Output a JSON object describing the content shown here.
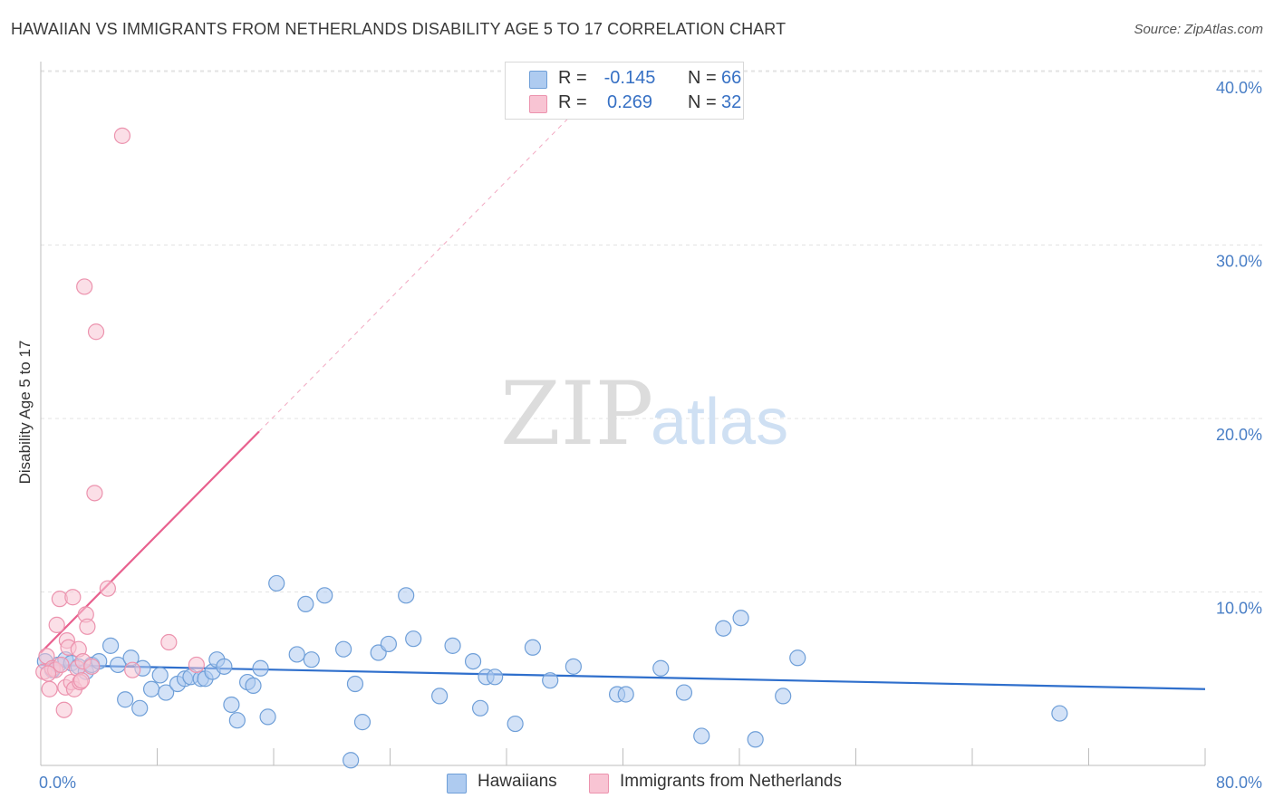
{
  "header": {
    "title": "HAWAIIAN VS IMMIGRANTS FROM NETHERLANDS DISABILITY AGE 5 TO 17 CORRELATION CHART",
    "source": "Source: ZipAtlas.com"
  },
  "watermark": {
    "zip": "ZIP",
    "atlas": "atlas"
  },
  "legend": {
    "r_label": "R =",
    "n_label": "N =",
    "hawaiians": {
      "r": "-0.145",
      "n": "66"
    },
    "netherlands": {
      "r": "0.269",
      "n": "32"
    }
  },
  "colors": {
    "blue_fill": "#aecbf0",
    "blue_stroke": "#6f9fd8",
    "blue_line": "#2f6fcc",
    "pink_fill": "#f8c4d3",
    "pink_stroke": "#ec93ae",
    "pink_line": "#e8608e",
    "tick_text": "#4a7fc6",
    "grid": "#e3e3e3"
  },
  "chart_data": {
    "type": "scatter",
    "title": "HAWAIIAN VS IMMIGRANTS FROM NETHERLANDS DISABILITY AGE 5 TO 17 CORRELATION CHART",
    "xlabel": "",
    "ylabel": "Disability Age 5 to 17",
    "xlim": [
      0,
      80
    ],
    "ylim": [
      0,
      42
    ],
    "x_tick_labels": [
      "0.0%",
      "80.0%"
    ],
    "y_ticks": [
      10,
      20,
      30,
      40
    ],
    "y_tick_labels": [
      "10.0%",
      "20.0%",
      "30.0%",
      "40.0%"
    ],
    "legend_labels": [
      "Hawaiians",
      "Immigrants from Netherlands"
    ],
    "series": [
      {
        "name": "Hawaiians",
        "trend": {
          "x": [
            0,
            80
          ],
          "y": [
            5.8,
            4.4
          ],
          "solid_to": 80
        },
        "points": [
          [
            0.3,
            6.0
          ],
          [
            0.8,
            5.5
          ],
          [
            1.2,
            5.8
          ],
          [
            1.7,
            6.1
          ],
          [
            2.1,
            5.9
          ],
          [
            2.6,
            5.7
          ],
          [
            3.1,
            5.4
          ],
          [
            3.5,
            5.8
          ],
          [
            4.0,
            6.0
          ],
          [
            4.8,
            6.9
          ],
          [
            5.3,
            5.8
          ],
          [
            5.8,
            3.8
          ],
          [
            6.2,
            6.2
          ],
          [
            6.8,
            3.3
          ],
          [
            7.0,
            5.6
          ],
          [
            7.6,
            4.4
          ],
          [
            8.2,
            5.2
          ],
          [
            8.6,
            4.2
          ],
          [
            9.4,
            4.7
          ],
          [
            9.9,
            5.0
          ],
          [
            10.3,
            5.1
          ],
          [
            11.0,
            5.0
          ],
          [
            11.3,
            5.0
          ],
          [
            11.8,
            5.4
          ],
          [
            12.1,
            6.1
          ],
          [
            12.6,
            5.7
          ],
          [
            13.1,
            3.5
          ],
          [
            13.5,
            2.6
          ],
          [
            14.2,
            4.8
          ],
          [
            14.6,
            4.6
          ],
          [
            15.1,
            5.6
          ],
          [
            15.6,
            2.8
          ],
          [
            16.2,
            10.5
          ],
          [
            17.6,
            6.4
          ],
          [
            18.2,
            9.3
          ],
          [
            18.6,
            6.1
          ],
          [
            19.5,
            9.8
          ],
          [
            20.8,
            6.7
          ],
          [
            21.6,
            4.7
          ],
          [
            22.1,
            2.5
          ],
          [
            23.2,
            6.5
          ],
          [
            23.9,
            7.0
          ],
          [
            25.1,
            9.8
          ],
          [
            25.6,
            7.3
          ],
          [
            27.4,
            4.0
          ],
          [
            28.3,
            6.9
          ],
          [
            29.7,
            6.0
          ],
          [
            30.2,
            3.3
          ],
          [
            30.6,
            5.1
          ],
          [
            31.2,
            5.1
          ],
          [
            32.6,
            2.4
          ],
          [
            33.8,
            6.8
          ],
          [
            35.0,
            4.9
          ],
          [
            36.6,
            5.7
          ],
          [
            39.6,
            4.1
          ],
          [
            40.2,
            4.1
          ],
          [
            42.6,
            5.6
          ],
          [
            44.2,
            4.2
          ],
          [
            45.4,
            1.7
          ],
          [
            46.9,
            7.9
          ],
          [
            48.1,
            8.5
          ],
          [
            49.1,
            1.5
          ],
          [
            51.0,
            4.0
          ],
          [
            52.0,
            6.2
          ],
          [
            70.0,
            3.0
          ],
          [
            21.3,
            0.3
          ]
        ]
      },
      {
        "name": "Immigrants from Netherlands",
        "trend": {
          "x": [
            0,
            40
          ],
          "y": [
            6.5,
            40.5
          ],
          "solid_to": 15
        },
        "points": [
          [
            0.2,
            5.4
          ],
          [
            0.4,
            6.3
          ],
          [
            0.6,
            4.4
          ],
          [
            0.8,
            5.6
          ],
          [
            1.0,
            5.5
          ],
          [
            1.1,
            8.1
          ],
          [
            1.3,
            9.6
          ],
          [
            1.4,
            5.8
          ],
          [
            1.6,
            3.2
          ],
          [
            1.7,
            4.5
          ],
          [
            1.8,
            7.2
          ],
          [
            1.9,
            6.8
          ],
          [
            2.1,
            4.8
          ],
          [
            2.2,
            9.7
          ],
          [
            2.3,
            4.4
          ],
          [
            2.5,
            5.6
          ],
          [
            2.6,
            6.7
          ],
          [
            2.7,
            4.8
          ],
          [
            2.8,
            4.9
          ],
          [
            2.9,
            6.0
          ],
          [
            3.0,
            27.6
          ],
          [
            3.1,
            8.7
          ],
          [
            3.2,
            8.0
          ],
          [
            3.5,
            5.7
          ],
          [
            3.7,
            15.7
          ],
          [
            3.8,
            25.0
          ],
          [
            4.6,
            10.2
          ],
          [
            5.6,
            36.3
          ],
          [
            6.3,
            5.5
          ],
          [
            8.8,
            7.1
          ],
          [
            10.7,
            5.8
          ],
          [
            0.5,
            5.3
          ]
        ]
      }
    ]
  }
}
